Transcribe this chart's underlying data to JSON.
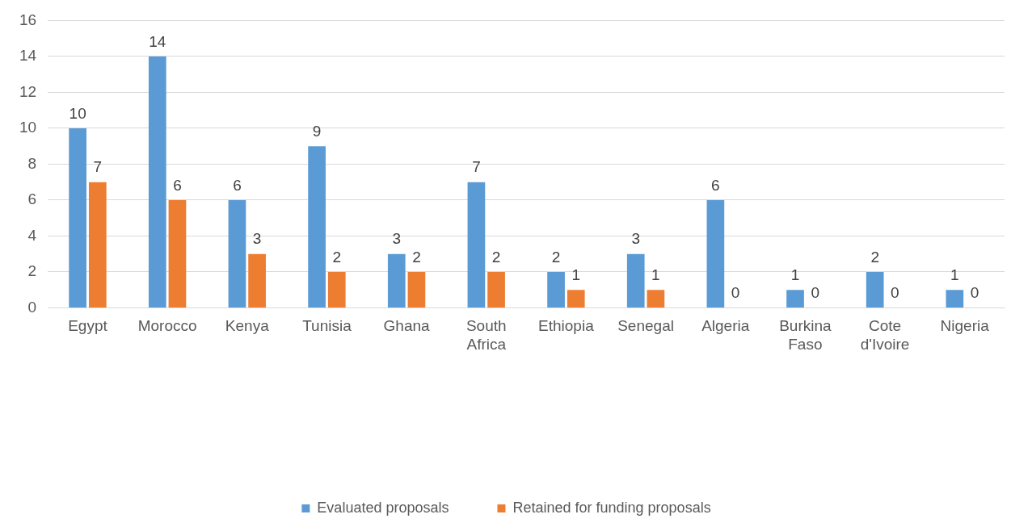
{
  "chart_data": {
    "type": "bar",
    "categories": [
      "Egypt",
      "Morocco",
      "Kenya",
      "Tunisia",
      "Ghana",
      "South Africa",
      "Ethiopia",
      "Senegal",
      "Algeria",
      "Burkina Faso",
      "Cote d'Ivoire",
      "Nigeria"
    ],
    "series": [
      {
        "name": "Evaluated proposals",
        "color": "#5b9bd5",
        "values": [
          10,
          14,
          6,
          9,
          3,
          7,
          2,
          3,
          6,
          1,
          2,
          1
        ]
      },
      {
        "name": "Retained for funding proposals",
        "color": "#ed7d31",
        "values": [
          7,
          6,
          3,
          2,
          2,
          2,
          1,
          1,
          0,
          0,
          0,
          0
        ]
      }
    ],
    "ylim": [
      0,
      16
    ],
    "yticks": [
      0,
      2,
      4,
      6,
      8,
      10,
      12,
      14,
      16
    ],
    "grid": "y",
    "legend": "bottom",
    "data_labels": true
  }
}
